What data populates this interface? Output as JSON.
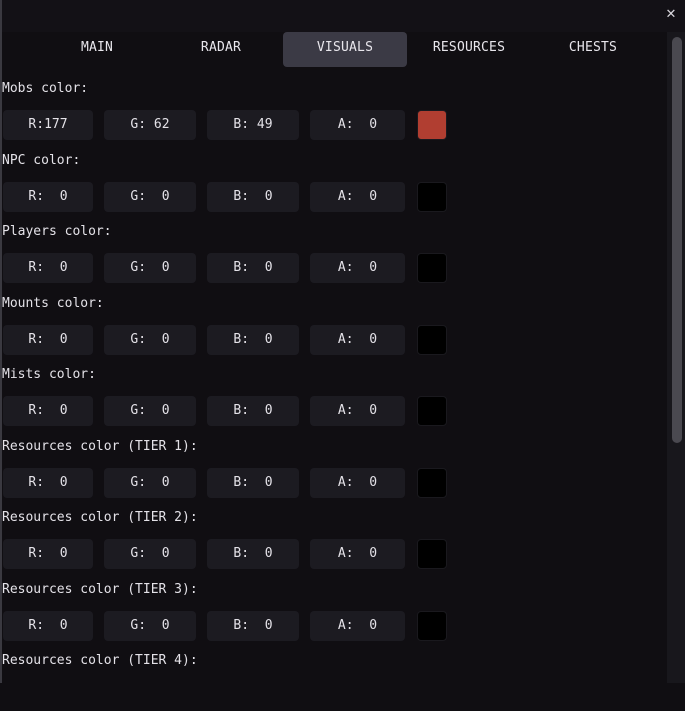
{
  "window": {
    "close_icon": "close-icon"
  },
  "tabs": [
    {
      "label": "MAIN",
      "active": false
    },
    {
      "label": "RADAR",
      "active": false
    },
    {
      "label": "VISUALS",
      "active": true
    },
    {
      "label": "RESOURCES",
      "active": false
    },
    {
      "label": "CHESTS",
      "active": false
    }
  ],
  "groups": [
    {
      "label": "Mobs color:",
      "r": "R:177",
      "g": "G: 62",
      "b": "B: 49",
      "a": "A:  0",
      "swatch": "#b13e31"
    },
    {
      "label": "NPC color:",
      "r": "R:  0",
      "g": "G:  0",
      "b": "B:  0",
      "a": "A:  0",
      "swatch": "#000000"
    },
    {
      "label": "Players color:",
      "r": "R:  0",
      "g": "G:  0",
      "b": "B:  0",
      "a": "A:  0",
      "swatch": "#000000"
    },
    {
      "label": "Mounts color:",
      "r": "R:  0",
      "g": "G:  0",
      "b": "B:  0",
      "a": "A:  0",
      "swatch": "#000000"
    },
    {
      "label": "Mists color:",
      "r": "R:  0",
      "g": "G:  0",
      "b": "B:  0",
      "a": "A:  0",
      "swatch": "#000000"
    },
    {
      "label": "Resources color (TIER 1):",
      "r": "R:  0",
      "g": "G:  0",
      "b": "B:  0",
      "a": "A:  0",
      "swatch": "#000000"
    },
    {
      "label": "Resources color (TIER 2):",
      "r": "R:  0",
      "g": "G:  0",
      "b": "B:  0",
      "a": "A:  0",
      "swatch": "#000000"
    },
    {
      "label": "Resources color (TIER 3):",
      "r": "R:  0",
      "g": "G:  0",
      "b": "B:  0",
      "a": "A:  0",
      "swatch": "#000000"
    },
    {
      "label": "Resources color (TIER 4):"
    }
  ],
  "colors": {
    "background": "#100e12",
    "field": "#1c1b21",
    "active_tab": "#3b3a45"
  }
}
